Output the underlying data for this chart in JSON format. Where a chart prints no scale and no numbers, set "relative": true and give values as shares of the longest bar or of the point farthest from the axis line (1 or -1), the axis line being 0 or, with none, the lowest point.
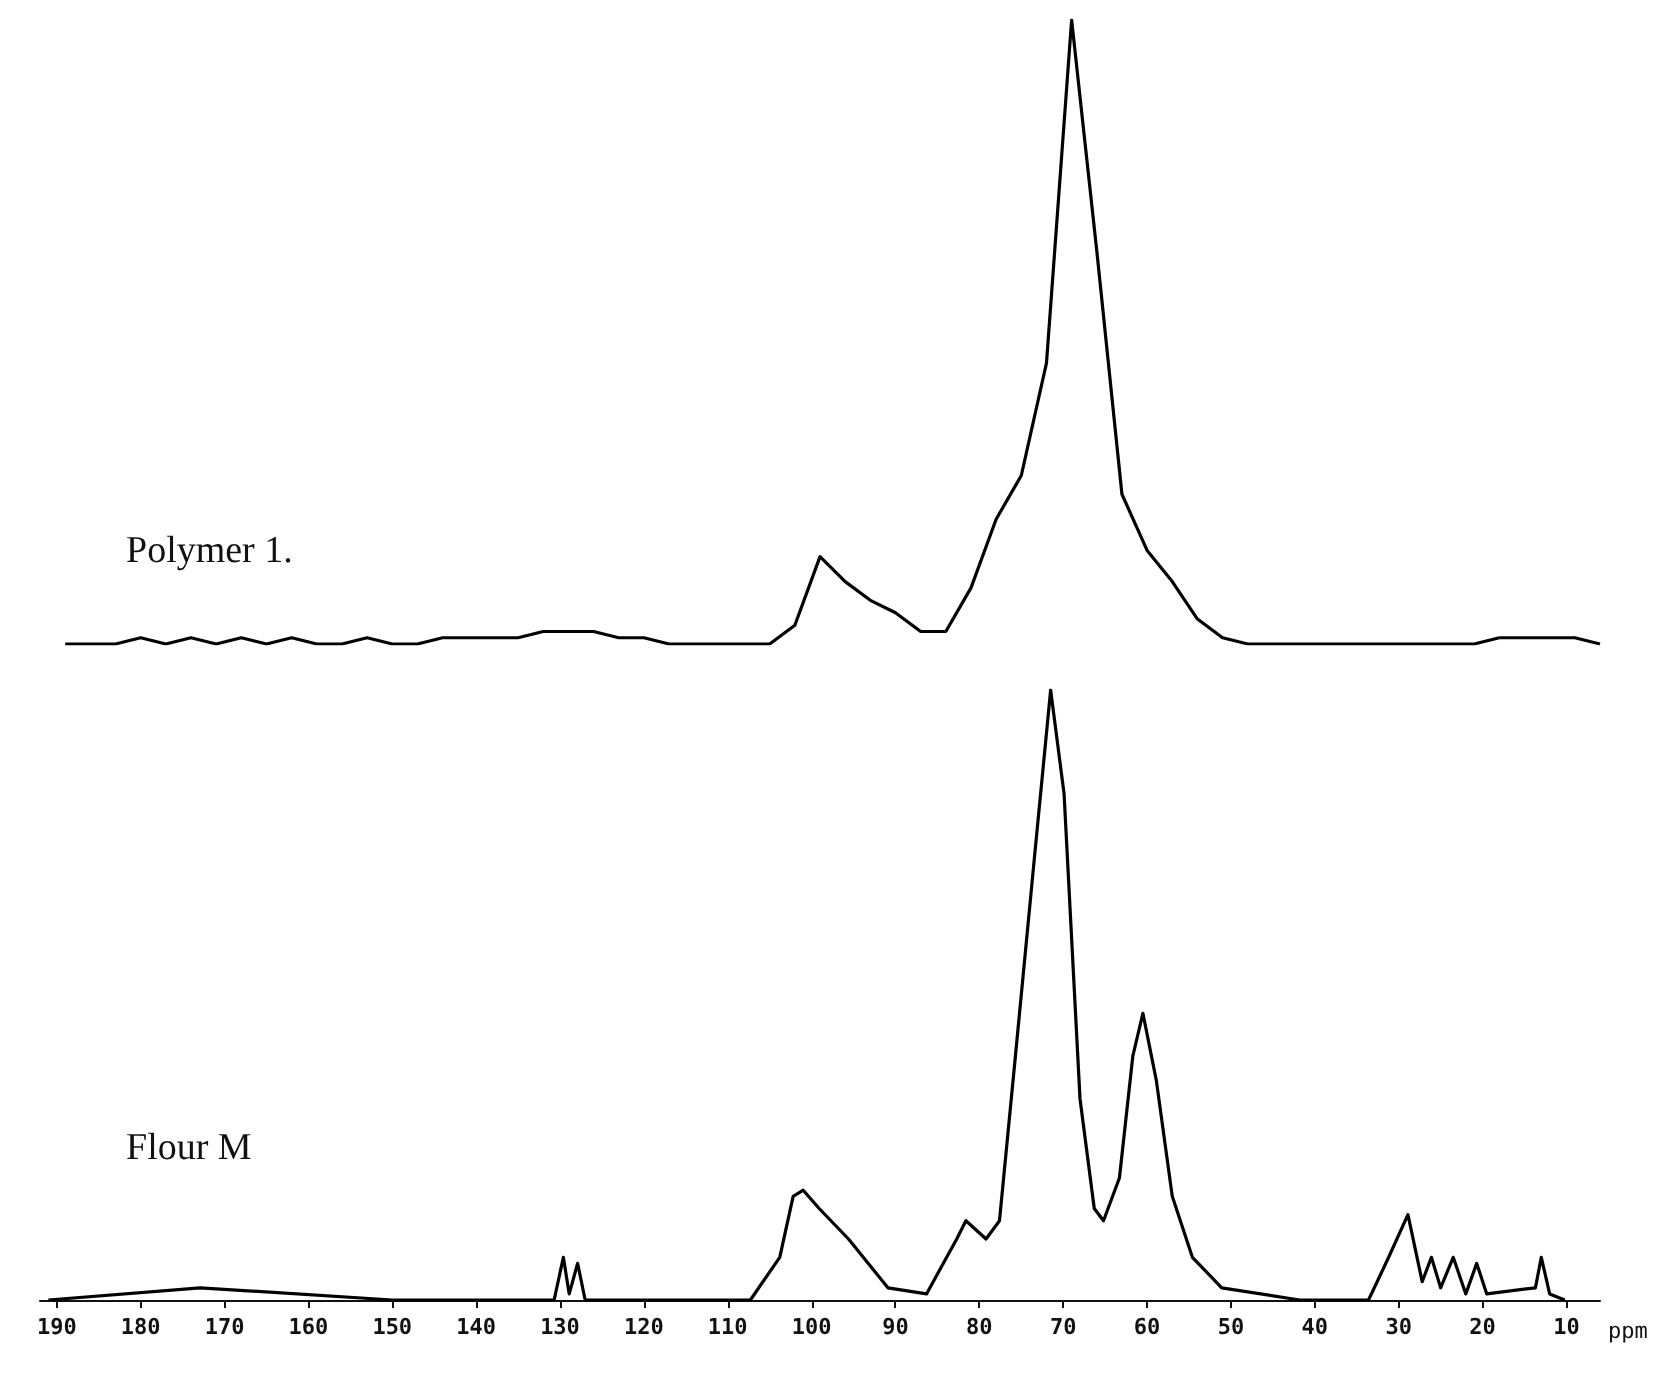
{
  "chart_data": [
    {
      "type": "line",
      "relative": true,
      "tick_labels": false,
      "categories": [
        null,
        null,
        null,
        null,
        null,
        null,
        null,
        null,
        null,
        null,
        null,
        null,
        null,
        null,
        null,
        null,
        null,
        null,
        null,
        null,
        null,
        null,
        null,
        null,
        null,
        null,
        null,
        null,
        null,
        null,
        null,
        null,
        null,
        null,
        null,
        null,
        null,
        null,
        null,
        null,
        null,
        null,
        null,
        null,
        null,
        null,
        null,
        null,
        null,
        null,
        null,
        null,
        null,
        null,
        null,
        null,
        null,
        null,
        null,
        null,
        null,
        null
      ],
      "series": [
        {
          "name": "Polymer 1.",
          "color": "#000000",
          "values": [
            0,
            0,
            0,
            0.01,
            0,
            0.01,
            0,
            0.01,
            0,
            0.01,
            0,
            0,
            0.01,
            0,
            0,
            0.01,
            0.01,
            0.01,
            0.01,
            0.02,
            0.02,
            0.02,
            0.01,
            0.01,
            0,
            0,
            0,
            0,
            0,
            0.03,
            0.14,
            0.1,
            0.07,
            0.05,
            0.02,
            0.02,
            0.09,
            0.2,
            0.27,
            0.45,
            1,
            0.63,
            0.24,
            0.15,
            0.1,
            0.04,
            0.01,
            0,
            0,
            0,
            0,
            0,
            0,
            0,
            0,
            0,
            0,
            0.01,
            0.01,
            0.01,
            0.01,
            0
          ]
        }
      ]
    },
    {
      "type": "line",
      "relative": true,
      "tick_labels": "x",
      "xlim": [
        192,
        6
      ],
      "xticks": [
        190,
        180,
        170,
        160,
        150,
        140,
        130,
        120,
        110,
        100,
        90,
        80,
        70,
        60,
        50,
        40,
        30,
        20,
        10
      ],
      "xlabel": "ppm",
      "x": [
        191,
        172.9,
        150,
        130.7,
        129.6,
        128.9,
        127.9,
        127,
        107.3,
        103.8,
        102.2,
        101,
        99.1,
        95.6,
        90.9,
        86.3,
        82.7,
        81.6,
        79.2,
        77.6,
        75.7,
        73.4,
        71.5,
        69.9,
        68,
        66.3,
        65.2,
        63.3,
        61.7,
        60.5,
        58.9,
        57,
        54.6,
        51.1,
        41.8,
        33.6,
        31.2,
        28.9,
        27.2,
        26.1,
        25,
        23.5,
        22,
        20.7,
        19.5,
        13.7,
        13,
        12,
        10.2
      ],
      "series": [
        {
          "name": "Flour M",
          "color": "#000000",
          "values": [
            0,
            0.02,
            0,
            0,
            0.07,
            0.01,
            0.06,
            0,
            0,
            0.07,
            0.17,
            0.18,
            0.15,
            0.1,
            0.02,
            0.01,
            0.1,
            0.13,
            0.1,
            0.13,
            0.4,
            0.73,
            1,
            0.83,
            0.33,
            0.15,
            0.13,
            0.2,
            0.4,
            0.47,
            0.36,
            0.17,
            0.07,
            0.02,
            0,
            0,
            0.07,
            0.14,
            0.03,
            0.07,
            0.02,
            0.07,
            0.01,
            0.06,
            0.01,
            0.02,
            0.07,
            0.01,
            0
          ]
        }
      ]
    }
  ]
}
